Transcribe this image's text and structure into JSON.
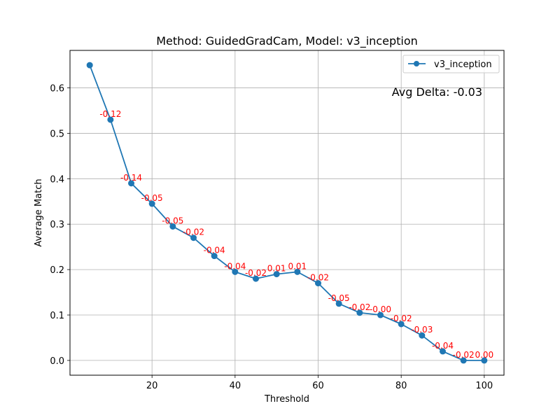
{
  "chart_data": {
    "type": "line",
    "title": "Method: GuidedGradCam, Model: v3_inception",
    "xlabel": "Threshold",
    "ylabel": "Average Match",
    "xlim": [
      0.25,
      104.75
    ],
    "ylim": [
      -0.0325,
      0.6825
    ],
    "x_ticks": [
      20,
      40,
      60,
      80,
      100
    ],
    "y_ticks": [
      0.0,
      0.1,
      0.2,
      0.3,
      0.4,
      0.5,
      0.6
    ],
    "grid": true,
    "legend_position": "top-right",
    "series": [
      {
        "name": "v3_inception",
        "color": "#1f77b4",
        "marker": "circle",
        "x": [
          5,
          10,
          15,
          20,
          25,
          30,
          35,
          40,
          45,
          50,
          55,
          60,
          65,
          70,
          75,
          80,
          85,
          90,
          95,
          100
        ],
        "y": [
          0.65,
          0.53,
          0.39,
          0.345,
          0.295,
          0.27,
          0.23,
          0.195,
          0.18,
          0.19,
          0.195,
          0.17,
          0.125,
          0.105,
          0.1,
          0.08,
          0.055,
          0.02,
          0.0,
          0.0
        ]
      }
    ],
    "annotations": {
      "color": "#ff0000",
      "labels": [
        "-0.12",
        "-0.14",
        "-0.05",
        "-0.05",
        "-0.02",
        "-0.04",
        "-0.04",
        "-0.02",
        "0.01",
        "0.01",
        "-0.02",
        "-0.05",
        "-0.02",
        "-0.00",
        "-0.02",
        "-0.03",
        "-0.04",
        "-0.02",
        "0.00"
      ]
    },
    "avg_delta_text": "Avg Delta: -0.03"
  }
}
